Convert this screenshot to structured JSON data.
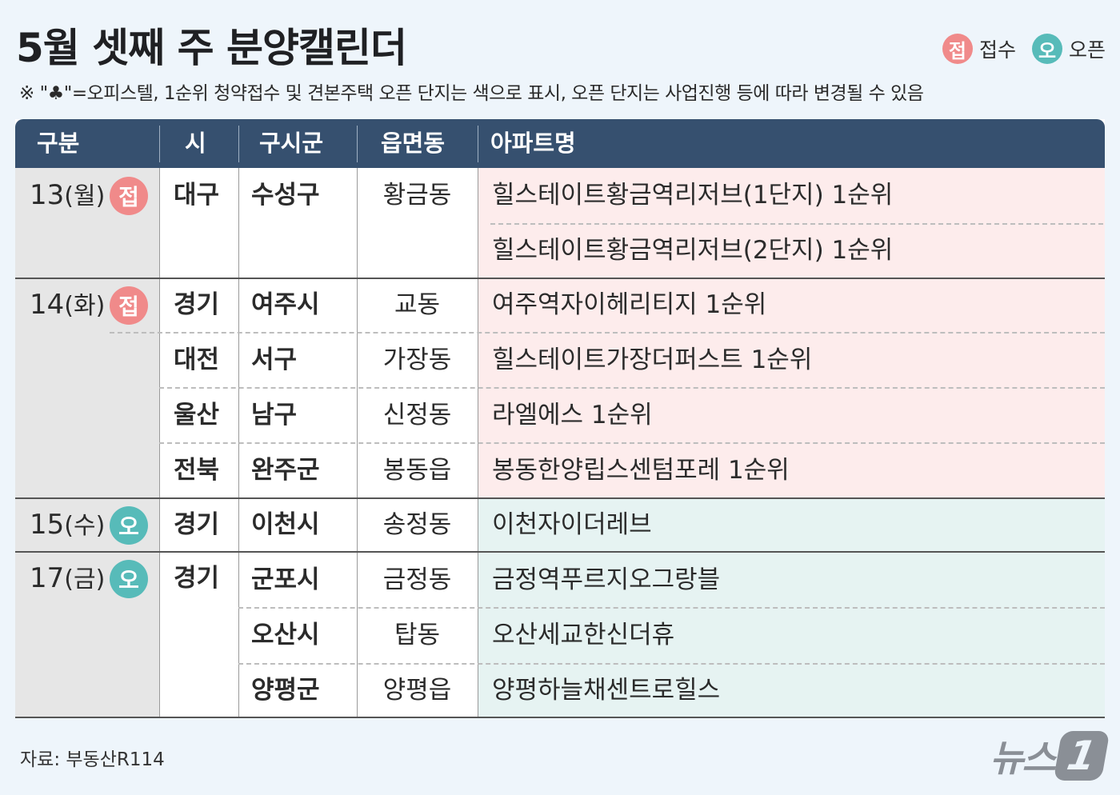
{
  "title": "5월 셋째 주 분양캘린더",
  "legend": {
    "receipt_mark": "접",
    "receipt_label": "접수",
    "open_mark": "오",
    "open_label": "오픈"
  },
  "note": "※ \"♣\"=오피스텔, 1순위 청약접수 및 견본주택 오픈 단지는 색으로  표시, 오픈 단지는 사업진행 등에 따라 변경될 수 있음",
  "headers": [
    "구분",
    "시",
    "구시군",
    "읍면동",
    "아파트명"
  ],
  "rows": [
    {
      "apt": "힐스테이트황금역리저브(1단지) 1순위"
    },
    {
      "apt": "힐스테이트황금역리저브(2단지) 1순위"
    },
    {
      "apt": "여주역자이헤리티지 1순위"
    },
    {
      "apt": "힐스테이트가장더퍼스트 1순위"
    },
    {
      "apt": "라엘에스 1순위"
    },
    {
      "apt": "봉동한양립스센텀포레 1순위"
    },
    {
      "apt": "이천자이더레브"
    },
    {
      "apt": "금정역푸르지오그랑블"
    },
    {
      "apt": "오산세교한신더휴"
    },
    {
      "apt": "양평하늘채센트로힐스"
    }
  ],
  "dates": [
    {
      "day": "13",
      "weekday": "(월)",
      "mark": "접"
    },
    {
      "day": "14",
      "weekday": "(화)",
      "mark": "접"
    },
    {
      "day": "15",
      "weekday": "(수)",
      "mark": "오"
    },
    {
      "day": "17",
      "weekday": "(금)",
      "mark": "오"
    }
  ],
  "cities": [
    "대구",
    "경기",
    "대전",
    "울산",
    "전북",
    "경기",
    "경기"
  ],
  "districts": [
    "수성구",
    "여주시",
    "서구",
    "남구",
    "완주군",
    "이천시",
    "군포시",
    "오산시",
    "양평군"
  ],
  "dongs": [
    "황금동",
    "교동",
    "가장동",
    "신정동",
    "봉동읍",
    "송정동",
    "금정동",
    "탑동",
    "양평읍"
  ],
  "source": "자료: 부동산R114",
  "logo": {
    "text": "뉴스",
    "mark": "1"
  },
  "colors": {
    "header": "#36506f",
    "receipt": "#f08a8a",
    "open": "#57bbb9",
    "receipt_row": "#fdecec",
    "open_row": "#e6f3f2",
    "date_col": "#e6e6e6"
  }
}
